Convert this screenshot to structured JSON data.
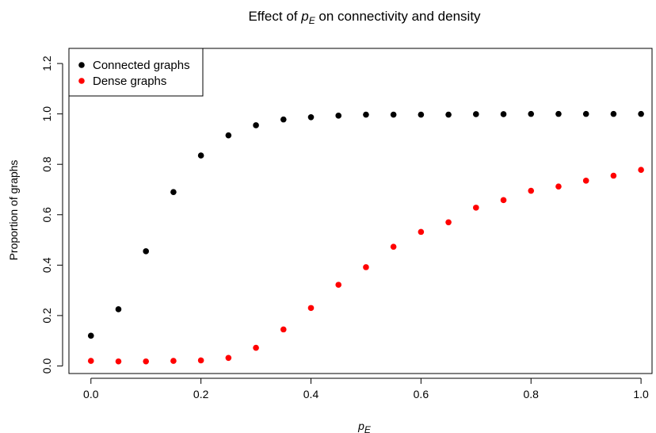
{
  "chart_data": {
    "type": "scatter",
    "title": {
      "prefix": "Effect of ",
      "math_base": "p",
      "math_sub": "E",
      "suffix": " on connectivity and density"
    },
    "xlabel": {
      "math_base": "p",
      "math_sub": "E"
    },
    "ylabel": "Proportion of graphs",
    "xlim": [
      -0.04,
      1.02
    ],
    "ylim": [
      -0.03,
      1.26
    ],
    "xticks": [
      0.0,
      0.2,
      0.4,
      0.6,
      0.8,
      1.0
    ],
    "xtick_labels": [
      "0.0",
      "0.2",
      "0.4",
      "0.6",
      "0.8",
      "1.0"
    ],
    "yticks": [
      0.0,
      0.2,
      0.4,
      0.6,
      0.8,
      1.0,
      1.2
    ],
    "ytick_labels": [
      "0.0",
      "0.2",
      "0.4",
      "0.6",
      "0.8",
      "1.0",
      "1.2"
    ],
    "grid": false,
    "legend_position": "top-left",
    "x": [
      0.0,
      0.05,
      0.1,
      0.15,
      0.2,
      0.25,
      0.3,
      0.35,
      0.4,
      0.45,
      0.5,
      0.55,
      0.6,
      0.65,
      0.7,
      0.75,
      0.8,
      0.85,
      0.9,
      0.95,
      1.0
    ],
    "series": [
      {
        "name": "Connected graphs",
        "color": "#000000",
        "values": [
          0.12,
          0.225,
          0.455,
          0.69,
          0.835,
          0.915,
          0.955,
          0.978,
          0.987,
          0.993,
          0.997,
          0.997,
          0.997,
          0.997,
          0.999,
          0.999,
          1.0,
          1.0,
          1.0,
          1.0,
          1.0
        ]
      },
      {
        "name": "Dense graphs",
        "color": "#ff0000",
        "values": [
          0.02,
          0.018,
          0.018,
          0.02,
          0.022,
          0.032,
          0.072,
          0.145,
          0.23,
          0.322,
          0.392,
          0.473,
          0.532,
          0.57,
          0.628,
          0.658,
          0.695,
          0.712,
          0.735,
          0.755,
          0.778
        ]
      }
    ]
  }
}
